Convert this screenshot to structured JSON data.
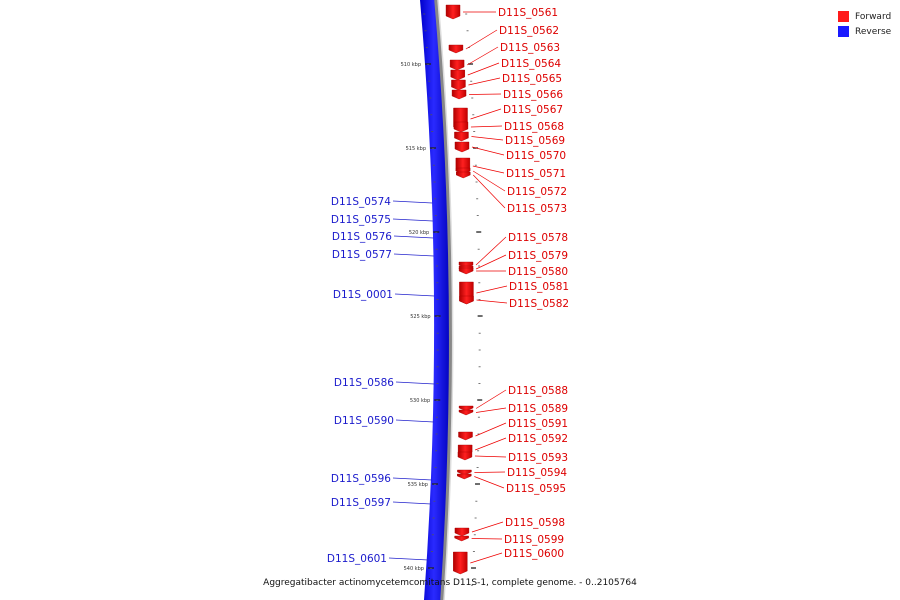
{
  "legend": {
    "forward_label": "Forward",
    "reverse_label": "Reverse",
    "forward_color": "#ff1a1a",
    "reverse_color": "#1a1aff"
  },
  "caption": "Aggregatibacter actinomycetemcomitans D11S-1, complete genome. - 0..2105764",
  "ticks": [
    {
      "label": "510 kbp"
    },
    {
      "label": "515 kbp"
    },
    {
      "label": "520 kbp"
    },
    {
      "label": "525 kbp"
    },
    {
      "label": "530 kbp"
    },
    {
      "label": "535 kbp"
    },
    {
      "label": "540 kbp"
    }
  ],
  "forward_genes": [
    "D11S_0561",
    "D11S_0562",
    "D11S_0563",
    "D11S_0564",
    "D11S_0565",
    "D11S_0566",
    "D11S_0567",
    "D11S_0568",
    "D11S_0569",
    "D11S_0570",
    "D11S_0571",
    "D11S_0572",
    "D11S_0573",
    "D11S_0578",
    "D11S_0579",
    "D11S_0580",
    "D11S_0581",
    "D11S_0582",
    "D11S_0588",
    "D11S_0589",
    "D11S_0591",
    "D11S_0592",
    "D11S_0593",
    "D11S_0594",
    "D11S_0595",
    "D11S_0598",
    "D11S_0599",
    "D11S_0600"
  ],
  "reverse_genes": [
    "D11S_0574",
    "D11S_0575",
    "D11S_0576",
    "D11S_0577",
    "D11S_0001",
    "D11S_0586",
    "D11S_0590",
    "D11S_0596",
    "D11S_0597",
    "D11S_0601"
  ]
}
